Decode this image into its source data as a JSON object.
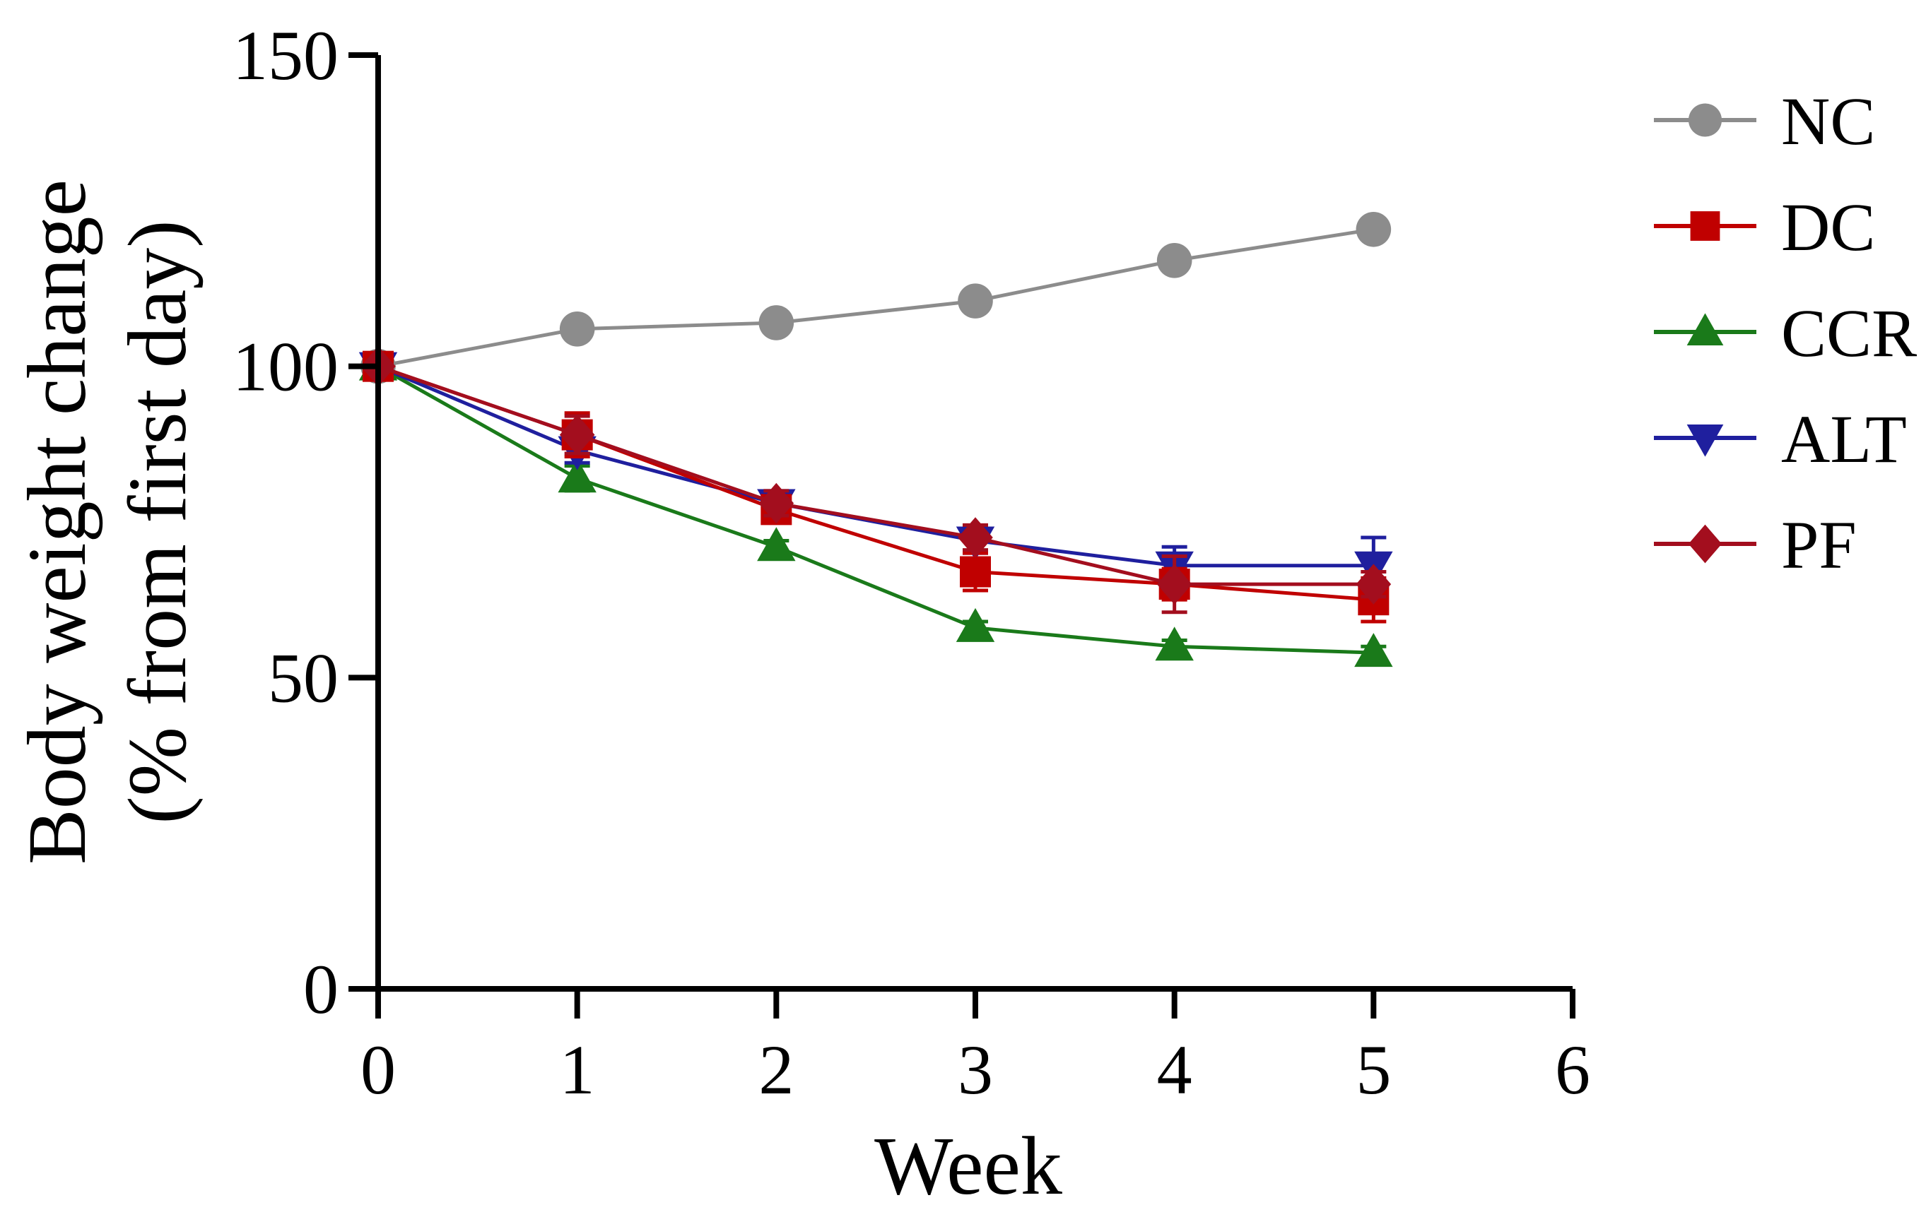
{
  "chart_data": {
    "type": "line",
    "title": "",
    "xlabel": "Week",
    "ylabel_line1": "Body weight change",
    "ylabel_line2": "(% from first day)",
    "xlim": [
      0,
      6
    ],
    "ylim": [
      0,
      150
    ],
    "x_ticks": [
      0,
      1,
      2,
      3,
      4,
      5,
      6
    ],
    "y_ticks": [
      0,
      50,
      100,
      150
    ],
    "grid": false,
    "legend_position": "right",
    "x": [
      0,
      1,
      2,
      3,
      4,
      5
    ],
    "series": [
      {
        "name": "NC",
        "color": "#8c8c8c",
        "marker": "circle",
        "values": [
          100,
          106,
          107,
          110.5,
          117,
          122
        ],
        "errors": [
          0,
          1,
          1,
          1,
          1,
          1
        ]
      },
      {
        "name": "DC",
        "color": "#c00000",
        "marker": "square",
        "values": [
          100,
          89,
          77,
          67,
          65,
          62.5
        ],
        "errors": [
          0,
          3.5,
          2,
          3,
          2.5,
          3.5
        ]
      },
      {
        "name": "CCR",
        "color": "#1a7a1a",
        "marker": "triangle",
        "values": [
          100,
          82,
          71,
          58,
          55,
          54
        ],
        "errors": [
          0,
          2,
          1,
          1,
          1,
          1
        ]
      },
      {
        "name": "ALT",
        "color": "#1f1f9e",
        "marker": "triangle-down",
        "values": [
          100,
          86.5,
          78,
          72,
          68,
          68
        ],
        "errors": [
          0,
          2,
          2,
          2,
          3,
          4.5
        ]
      },
      {
        "name": "PF",
        "color": "#a30e1e",
        "marker": "diamond",
        "values": [
          100,
          89,
          78,
          72.5,
          65,
          65
        ],
        "errors": [
          0,
          3,
          2,
          2,
          4.5,
          2
        ]
      }
    ]
  }
}
